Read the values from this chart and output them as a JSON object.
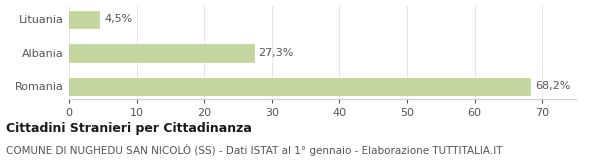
{
  "categories": [
    "Lituania",
    "Albania",
    "Romania"
  ],
  "values": [
    4.5,
    27.3,
    68.2
  ],
  "bar_color": "#c5d5a0",
  "bar_edge_color": "#b8c98a",
  "labels": [
    "4,5%",
    "27,3%",
    "68,2%"
  ],
  "xlim": [
    0,
    75
  ],
  "xticks": [
    0,
    10,
    20,
    30,
    40,
    50,
    60,
    70
  ],
  "title_bold": "Cittadini Stranieri per Cittadinanza",
  "subtitle": "COMUNE DI NUGHEDU SAN NICOLÒ (SS) - Dati ISTAT al 1° gennaio - Elaborazione TUTTITALIA.IT",
  "title_fontsize": 9,
  "subtitle_fontsize": 7.5,
  "label_fontsize": 8,
  "tick_fontsize": 8,
  "ytick_fontsize": 8,
  "background_color": "#ffffff",
  "text_color": "#555555",
  "grid_color": "#e0e0e0",
  "spine_color": "#cccccc"
}
